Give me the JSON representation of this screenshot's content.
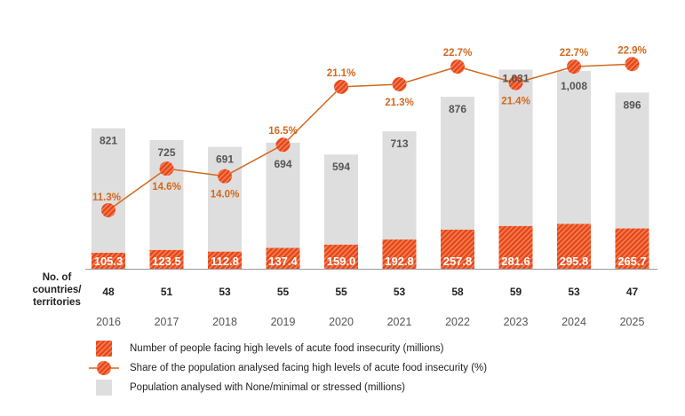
{
  "chart_data": {
    "type": "bar",
    "categories": [
      "2016",
      "2017",
      "2018",
      "2019",
      "2020",
      "2021",
      "2022",
      "2023",
      "2024",
      "2025"
    ],
    "countries_label": "No. of countries/ territories",
    "countries": [
      48,
      51,
      53,
      55,
      55,
      53,
      58,
      59,
      53,
      47
    ],
    "series": [
      {
        "name": "Number of people facing high levels of acute food insecurity (millions)",
        "type": "bar",
        "values": [
          105.3,
          123.5,
          112.8,
          137.4,
          159.0,
          192.8,
          257.8,
          281.6,
          295.8,
          265.7
        ],
        "labels": [
          "105.3",
          "123.5",
          "112.8",
          "137.4",
          "159.0",
          "192.8",
          "257.8",
          "281.6",
          "295.8",
          "265.7"
        ]
      },
      {
        "name": "Share of the population analysed facing high levels of acute food insecurity (%)",
        "type": "line",
        "values": [
          11.3,
          14.6,
          14.0,
          16.5,
          21.1,
          21.3,
          22.7,
          21.4,
          22.7,
          22.9
        ],
        "labels": [
          "11.3%",
          "14.6%",
          "14.0%",
          "16.5%",
          "21.1%",
          "21.3%",
          "22.7%",
          "21.4%",
          "22.7%",
          "22.9%"
        ]
      },
      {
        "name": "Population analysed with None/minimal or stressed (millions)",
        "type": "bar",
        "values": [
          821,
          725,
          691,
          694,
          594,
          713,
          876,
          1031,
          1008,
          896
        ],
        "labels": [
          "821",
          "725",
          "691",
          "694",
          "594",
          "713",
          "876",
          "1,031",
          "1,008",
          "896"
        ]
      }
    ],
    "colors": {
      "red": "#e8461e",
      "orange_text": "#d2691e",
      "grey": "#dedede",
      "line": "#d2691e"
    }
  }
}
